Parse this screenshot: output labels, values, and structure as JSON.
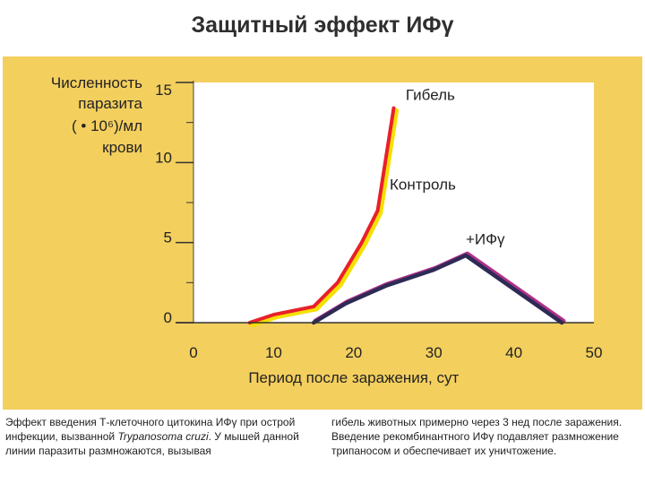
{
  "title": "Защитный эффект ИФγ",
  "chart_data": {
    "type": "line",
    "ylabel_lines": [
      "Численность",
      "паразита",
      "( • 10⁶)/мл",
      "крови"
    ],
    "xlabel": "Период после заражения, сут",
    "xlim": [
      0,
      50
    ],
    "ylim": [
      0,
      15
    ],
    "xticks": [
      0,
      10,
      20,
      30,
      40,
      50
    ],
    "yticks": [
      0,
      5,
      10,
      15
    ],
    "series": [
      {
        "name": "Контроль",
        "color": "#f5e000",
        "points": [
          [
            7,
            0
          ],
          [
            10,
            0.5
          ],
          [
            15,
            1.0
          ],
          [
            18,
            2.5
          ],
          [
            21,
            5.0
          ],
          [
            23,
            7.0
          ],
          [
            25,
            13.4
          ]
        ]
      },
      {
        "name": "Гибель",
        "color": "#e8202a",
        "points": [
          [
            7,
            0
          ],
          [
            10,
            0.5
          ],
          [
            15,
            1.0
          ],
          [
            18,
            2.5
          ],
          [
            21,
            5.0
          ],
          [
            23,
            7.0
          ],
          [
            25,
            13.4
          ]
        ]
      },
      {
        "name": "+ИФγ",
        "color": "#2d2b55",
        "points": [
          [
            15,
            0
          ],
          [
            19,
            1.2
          ],
          [
            24,
            2.3
          ],
          [
            30,
            3.3
          ],
          [
            34,
            4.2
          ],
          [
            46,
            0
          ]
        ]
      }
    ],
    "annotations": {
      "death": "Гибель",
      "control": "Контроль",
      "ifn": "+ИФγ"
    }
  },
  "caption": {
    "left_a": "Эффект введения Т-клеточного цитокина ИФγ при острой инфекции, вызванной ",
    "left_italic": "Trypanosoma cruzi",
    "left_b": ". У мышей данной линии паразиты размножаются, вызывая",
    "right": "гибель животных примерно через 3 нед после заражения. Введение рекомбинантного ИФγ подавляет размножение трипаносом и обеспечивает их уничтожение."
  }
}
